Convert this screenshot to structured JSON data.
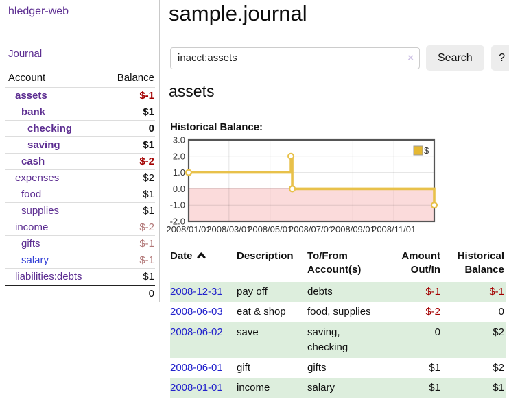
{
  "app": {
    "title": "hledger-web",
    "nav_journal": "Journal"
  },
  "sidebar": {
    "header": {
      "account": "Account",
      "balance": "Balance"
    },
    "rows": [
      {
        "name": "assets",
        "balance": "$-1"
      },
      {
        "name": "bank",
        "balance": "$1"
      },
      {
        "name": "checking",
        "balance": "0"
      },
      {
        "name": "saving",
        "balance": "$1"
      },
      {
        "name": "cash",
        "balance": "$-2"
      },
      {
        "name": "expenses",
        "balance": "$2"
      },
      {
        "name": "food",
        "balance": "$1"
      },
      {
        "name": "supplies",
        "balance": "$1"
      },
      {
        "name": "income",
        "balance": "$-2"
      },
      {
        "name": "gifts",
        "balance": "$-1"
      },
      {
        "name": "salary",
        "balance": "$-1"
      },
      {
        "name": "liabilities:debts",
        "balance": "$1"
      }
    ],
    "total": "0"
  },
  "header": {
    "title": "sample.journal"
  },
  "search": {
    "value": "inacct:assets",
    "clear_label": "×",
    "button_label": "Search",
    "help_label": "?"
  },
  "account_page": {
    "title": "assets",
    "chart_label": "Historical Balance:"
  },
  "chart_data": {
    "type": "line",
    "step": true,
    "title": "Historical Balance",
    "series": [
      {
        "name": "$",
        "points": [
          {
            "date": "2008-01-01",
            "value": 1
          },
          {
            "date": "2008-06-01",
            "value": 2
          },
          {
            "date": "2008-06-03",
            "value": 0
          },
          {
            "date": "2008-12-31",
            "value": -1
          }
        ]
      }
    ],
    "x_range": [
      "2008-01-01",
      "2008-12-31"
    ],
    "ylim": [
      -2,
      3
    ],
    "y_ticks": [
      "3.0",
      "2.0",
      "1.0",
      "0.0",
      "-1.0",
      "-2.0"
    ],
    "x_tick_labels": [
      "2008/01/01",
      "2008/03/01",
      "2008/05/01",
      "2008/07/01",
      "2008/09/01",
      "2008/11/01"
    ],
    "grid": true,
    "legend_position": "top-right",
    "line_color": "#e8c14a",
    "legend_fill": "#e5b832",
    "negative_region_color": "#fbdbdb",
    "zero_line_color": "#8b1a1a"
  },
  "table": {
    "headers": {
      "date": "Date",
      "description": "Description",
      "account_1": "To/From",
      "account_2": "Account(s)",
      "amount_1": "Amount",
      "amount_2": "Out/In",
      "balance_1": "Historical",
      "balance_2": "Balance"
    },
    "rows": [
      {
        "date": "2008-12-31",
        "description": "pay off",
        "accounts": "debts",
        "amount": "$-1",
        "balance": "$-1"
      },
      {
        "date": "2008-06-03",
        "description": "eat & shop",
        "accounts": "food, supplies",
        "amount": "$-2",
        "balance": "0"
      },
      {
        "date": "2008-06-02",
        "description": "save",
        "accounts": "saving, checking",
        "amount": "0",
        "balance": "$2"
      },
      {
        "date": "2008-06-01",
        "description": "gift",
        "accounts": "gifts",
        "amount": "$1",
        "balance": "$2"
      },
      {
        "date": "2008-01-01",
        "description": "income",
        "accounts": "salary",
        "amount": "$1",
        "balance": "$1"
      }
    ]
  }
}
